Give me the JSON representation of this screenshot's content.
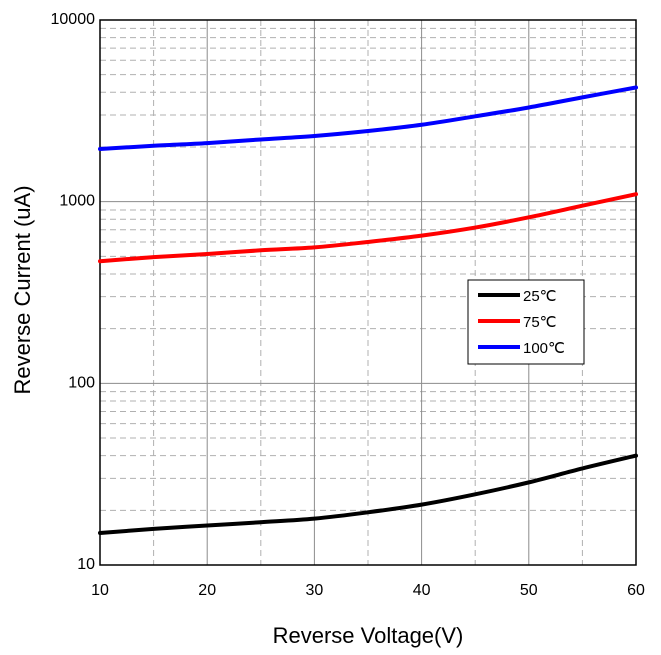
{
  "chart_data": {
    "type": "line",
    "title": "",
    "xlabel": "Reverse Voltage(V)",
    "ylabel": "Reverse Current (uA)",
    "x_ticks": [
      "10",
      "20",
      "30",
      "40",
      "50",
      "60"
    ],
    "y_ticks": [
      "10",
      "100",
      "1000",
      "10000"
    ],
    "xlim": [
      10,
      60
    ],
    "ylim": [
      10,
      10000
    ],
    "y_scale": "log",
    "grid": true,
    "legend_position": "right-middle",
    "series": [
      {
        "name": "25℃",
        "color": "#000000",
        "x": [
          10,
          15,
          20,
          25,
          30,
          35,
          40,
          45,
          50,
          55,
          60
        ],
        "y": [
          15,
          15.8,
          16.5,
          17.2,
          18,
          19.5,
          21.5,
          24.5,
          28.5,
          34,
          40
        ]
      },
      {
        "name": "75℃",
        "color": "#ff0000",
        "x": [
          10,
          15,
          20,
          25,
          30,
          35,
          40,
          45,
          50,
          55,
          60
        ],
        "y": [
          470,
          495,
          515,
          540,
          560,
          600,
          650,
          720,
          820,
          950,
          1100
        ]
      },
      {
        "name": "100℃",
        "color": "#0000ff",
        "x": [
          10,
          15,
          20,
          25,
          30,
          35,
          40,
          45,
          50,
          55,
          60
        ],
        "y": [
          1950,
          2030,
          2100,
          2200,
          2300,
          2450,
          2650,
          2950,
          3300,
          3750,
          4250
        ]
      }
    ]
  }
}
